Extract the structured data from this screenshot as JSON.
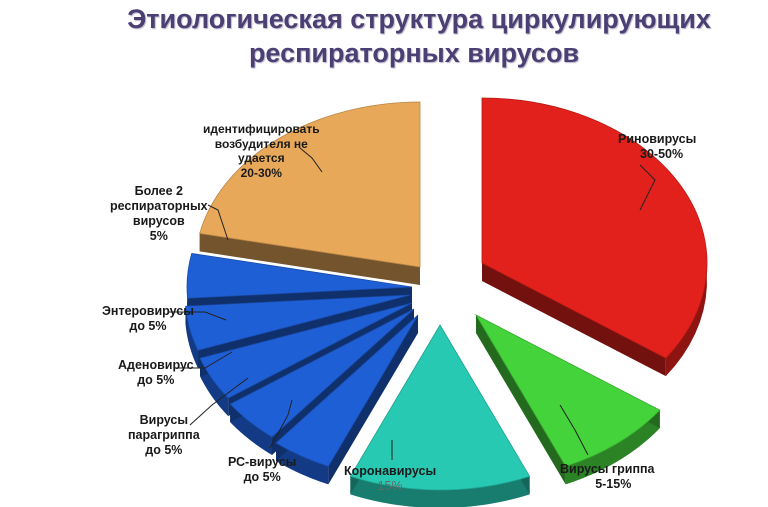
{
  "title_line1": "Этиологическая структура циркулирующих",
  "title_line2": "респираторных вирусов",
  "chart_data": {
    "type": "pie",
    "title": "Этиологическая структура циркулирующих респираторных вирусов",
    "slices": [
      {
        "label": [
          "Риновирусы",
          "30-50%"
        ],
        "value": 40,
        "range": "30-50%",
        "color": "#e3211c"
      },
      {
        "label": [
          "Вирусы гриппа",
          "5-15%"
        ],
        "value": 10,
        "range": "5-15%",
        "color": "#45d33b"
      },
      {
        "label": [
          "Коронавирусы",
          "15%"
        ],
        "value": 15,
        "range": "15%",
        "color": "#27c9b3"
      },
      {
        "label": [
          "РС-вирусы",
          "до 5%"
        ],
        "value": 5,
        "range": "до 5%",
        "color": "#1f5fd6"
      },
      {
        "label": [
          "Вирусы",
          "парагриппа",
          "до 5%"
        ],
        "value": 5,
        "range": "до 5%",
        "color": "#1f5fd6"
      },
      {
        "label": [
          "Аденовирус",
          "до 5%"
        ],
        "value": 5,
        "range": "до 5%",
        "color": "#1f5fd6"
      },
      {
        "label": [
          "Энтеровирусы",
          "до 5%"
        ],
        "value": 5,
        "range": "до 5%",
        "color": "#1f5fd6"
      },
      {
        "label": [
          "Более 2",
          "респираторных",
          "вирусов",
          "5%"
        ],
        "value": 5,
        "range": "5%",
        "color": "#1f5fd6"
      },
      {
        "label": [
          "идентифицировать",
          "возбудителя не",
          "удается",
          "20-30%"
        ],
        "value": 25,
        "range": "20-30%",
        "color": "#e8a859"
      }
    ],
    "legend": "none"
  }
}
